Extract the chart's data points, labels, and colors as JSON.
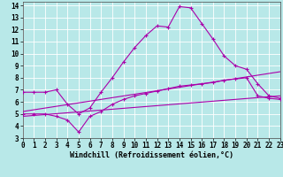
{
  "background_color": "#b8e8e8",
  "grid_color": "#ffffff",
  "line_color": "#aa00aa",
  "xlabel": "Windchill (Refroidissement éolien,°C)",
  "xlim": [
    0,
    23
  ],
  "ylim": [
    3,
    14.3
  ],
  "xticks": [
    0,
    1,
    2,
    3,
    4,
    5,
    6,
    7,
    8,
    9,
    10,
    11,
    12,
    13,
    14,
    15,
    16,
    17,
    18,
    19,
    20,
    21,
    22,
    23
  ],
  "yticks": [
    3,
    4,
    5,
    6,
    7,
    8,
    9,
    10,
    11,
    12,
    13,
    14
  ],
  "line1_x": [
    0,
    1,
    2,
    3,
    4,
    5,
    6,
    7,
    8,
    9,
    10,
    11,
    12,
    13,
    14,
    15,
    16,
    17,
    18,
    19,
    20,
    21,
    22,
    23
  ],
  "line1_y": [
    6.8,
    6.8,
    6.8,
    7.0,
    5.8,
    5.0,
    5.5,
    6.8,
    8.0,
    9.3,
    10.5,
    11.5,
    12.3,
    12.2,
    13.9,
    13.8,
    12.5,
    11.2,
    9.8,
    9.0,
    8.7,
    7.5,
    6.5,
    6.3
  ],
  "line2_x": [
    0,
    1,
    2,
    3,
    4,
    5,
    6,
    7,
    8,
    9,
    10,
    11,
    12,
    13,
    14,
    15,
    16,
    17,
    18,
    19,
    20,
    21,
    22,
    23
  ],
  "line2_y": [
    5.0,
    5.0,
    5.0,
    4.8,
    4.5,
    3.5,
    4.8,
    5.2,
    5.8,
    6.2,
    6.5,
    6.7,
    6.9,
    7.1,
    7.3,
    7.4,
    7.5,
    7.6,
    7.8,
    7.9,
    8.0,
    6.5,
    6.3,
    6.2
  ],
  "line3_x": [
    0,
    23
  ],
  "line3_y": [
    5.2,
    8.5
  ],
  "line4_x": [
    0,
    23
  ],
  "line4_y": [
    4.8,
    6.5
  ],
  "tick_fontsize": 5.5,
  "xlabel_fontsize": 6.0,
  "marker_size": 3,
  "lw": 0.8
}
